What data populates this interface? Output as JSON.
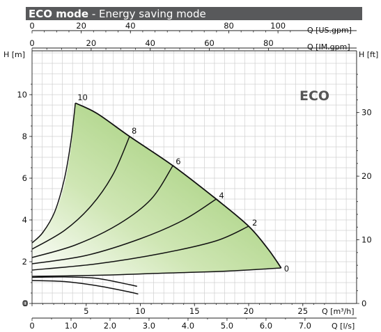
{
  "header": {
    "title_bold": "ECO mode",
    "title_rest": " - Energy saving mode",
    "colors": {
      "bar": "#58595b",
      "fill_dark": "#8fc45f",
      "fill_light": "#ffffff"
    }
  },
  "chart_data": {
    "type": "line",
    "title": "ECO mode - Energy saving mode",
    "watermark": "ECO",
    "axes": {
      "x_bottom_m3h": {
        "label": "Q [m³/h]",
        "range": [
          0,
          28
        ],
        "ticks": [
          0,
          5,
          10,
          15,
          20,
          25
        ]
      },
      "x_bottom_ls": {
        "label": "Q [l/s]",
        "ticks": [
          "0",
          "1.0",
          "2.0",
          "3.0",
          "4.0",
          "5.0",
          "6.0",
          "7.0"
        ]
      },
      "x_top_usgpm": {
        "label": "Q [US.gpm]",
        "ticks": [
          0,
          20,
          40,
          80,
          100
        ]
      },
      "x_top_imgpm": {
        "label": "Q [IM.gpm]",
        "ticks": [
          0,
          20,
          40,
          60,
          80
        ]
      },
      "y_left_m": {
        "label": "H [m]",
        "range": [
          0,
          11.3
        ],
        "ticks": [
          0,
          2,
          4,
          6,
          8,
          10
        ]
      },
      "y_right_ft": {
        "label": "H [ft]",
        "ticks": [
          0,
          10,
          20,
          30
        ]
      }
    },
    "grid": true,
    "envelope": {
      "top_edge": [
        [
          4.0,
          9.6
        ],
        [
          6.0,
          9.1
        ],
        [
          9.0,
          8.0
        ],
        [
          13.0,
          6.6
        ],
        [
          17.0,
          5.0
        ],
        [
          20.0,
          3.7
        ],
        [
          21.8,
          2.6
        ],
        [
          23.0,
          1.7
        ]
      ],
      "left_edge": [
        [
          4.0,
          9.6
        ],
        [
          3.6,
          7.5
        ],
        [
          2.9,
          5.5
        ],
        [
          1.9,
          4.1
        ],
        [
          0.8,
          3.3
        ],
        [
          0,
          2.9
        ]
      ]
    },
    "series": [
      {
        "name": "10",
        "points": [
          [
            0,
            2.9
          ],
          [
            1.0,
            3.4
          ],
          [
            2.1,
            4.4
          ],
          [
            3.0,
            6.0
          ],
          [
            3.6,
            7.8
          ],
          [
            4.0,
            9.6
          ]
        ]
      },
      {
        "name": "8",
        "points": [
          [
            0,
            2.6
          ],
          [
            3.0,
            3.5
          ],
          [
            5.5,
            4.7
          ],
          [
            7.5,
            6.2
          ],
          [
            9.0,
            8.0
          ]
        ]
      },
      {
        "name": "6",
        "points": [
          [
            0,
            2.2
          ],
          [
            4.0,
            2.8
          ],
          [
            8.0,
            3.8
          ],
          [
            11.0,
            5.0
          ],
          [
            13.0,
            6.6
          ]
        ]
      },
      {
        "name": "4",
        "points": [
          [
            0,
            1.9
          ],
          [
            5.0,
            2.3
          ],
          [
            10.0,
            3.1
          ],
          [
            14.0,
            4.0
          ],
          [
            17.0,
            5.0
          ]
        ]
      },
      {
        "name": "2",
        "points": [
          [
            0,
            1.6
          ],
          [
            6.0,
            1.9
          ],
          [
            12.0,
            2.4
          ],
          [
            17.0,
            3.0
          ],
          [
            20.0,
            3.7
          ]
        ]
      },
      {
        "name": "0",
        "points": [
          [
            0,
            1.3
          ],
          [
            6.0,
            1.35
          ],
          [
            12.0,
            1.45
          ],
          [
            18.0,
            1.55
          ],
          [
            23.0,
            1.7
          ]
        ]
      }
    ],
    "lower_curves": [
      {
        "points": [
          [
            0,
            1.25
          ],
          [
            3.0,
            1.27
          ],
          [
            6.0,
            1.2
          ],
          [
            9.0,
            0.9
          ],
          [
            9.7,
            0.82
          ]
        ]
      },
      {
        "points": [
          [
            0,
            1.1
          ],
          [
            3.0,
            1.05
          ],
          [
            6.0,
            0.85
          ],
          [
            9.0,
            0.55
          ],
          [
            9.8,
            0.45
          ]
        ]
      }
    ]
  }
}
